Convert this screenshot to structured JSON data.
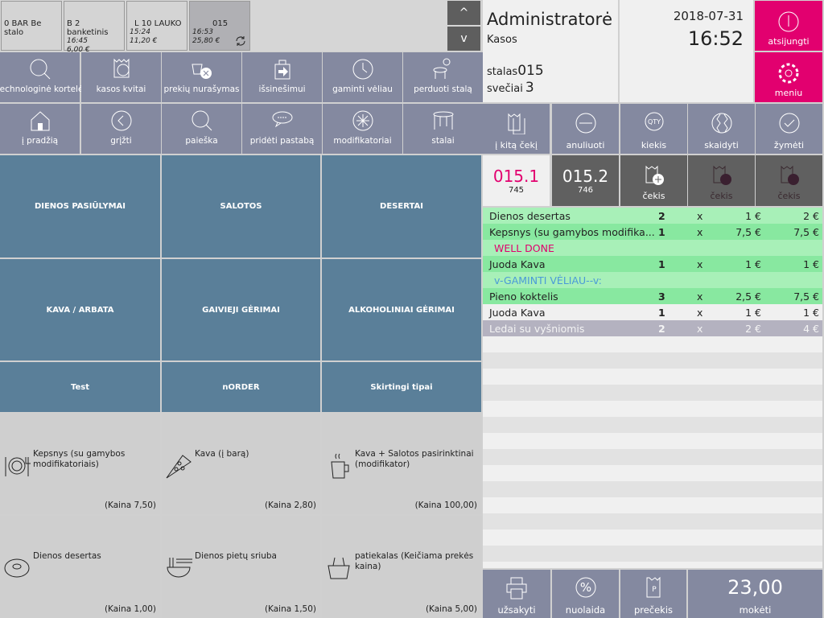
{
  "tables": [
    {
      "label": "0 BAR Be stalo",
      "time": "",
      "amount": ""
    },
    {
      "label": "B 2 banketinis",
      "time": "16:45",
      "amount": "6,00 €"
    },
    {
      "label": "L 10 LAUKO",
      "time": "15:24",
      "amount": "11,20 €"
    },
    {
      "label": "015",
      "time": "16:53",
      "amount": "25,80 €"
    }
  ],
  "arrows": {
    "up": "^",
    "down": "v"
  },
  "toolbar1": [
    "technologinė kortelė",
    "kasos kvitai",
    "prekių nurašymas",
    "išsinešimui",
    "gaminti vėliau",
    "perduoti stalą"
  ],
  "toolbar2": [
    "į pradžią",
    "grįžti",
    "paieška",
    "pridėti pastabą",
    "modifikatoriai",
    "stalai"
  ],
  "categories": [
    "DIENOS PASIŪLYMAI",
    "SALOTOS",
    "DESERTAI",
    "KAVA / ARBATA",
    "GAIVIEJI GĖRIMAI",
    "ALKOHOLINIAI GĖRIMAI",
    "Test",
    "nORDER",
    "Skirtingi tipai"
  ],
  "products": [
    {
      "name": "Kepsnys (su gamybos modifikatoriais)",
      "price": "(Kaina 7,50)",
      "icon": "plate-cutlery-icon"
    },
    {
      "name": "Kava (į barą)",
      "price": "(Kaina 2,80)",
      "icon": "pizza-icon"
    },
    {
      "name": "Kava + Salotos pasirinktinai (modifikator)",
      "price": "(Kaina 100,00)",
      "icon": "cup-icon"
    },
    {
      "name": "Dienos desertas",
      "price": "(Kaina 1,00)",
      "icon": "donut-icon"
    },
    {
      "name": "Dienos pietų sriuba",
      "price": "(Kaina 1,50)",
      "icon": "noodle-bowl-icon"
    },
    {
      "name": "patiekalas (Keičiama prekės kaina)",
      "price": "(Kaina 5,00)",
      "icon": "basket-icon"
    }
  ],
  "header": {
    "user": "Administratorė",
    "role": "Kasos",
    "table_label": "stalas",
    "table": "015",
    "guests_label": "svečiai",
    "guests": "3",
    "date": "2018-07-31",
    "time": "16:52",
    "logout": "atsijungti",
    "menu": "meniu"
  },
  "actions": [
    "į kitą čekį",
    "anuliuoti",
    "kiekis",
    "skaidyti",
    "žymėti"
  ],
  "checks": [
    {
      "id": "015.1",
      "num": "745"
    },
    {
      "id": "015.2",
      "num": "746"
    }
  ],
  "check_add": [
    "čekis",
    "čekis",
    "čekis"
  ],
  "lines": [
    {
      "name": "Dienos desertas",
      "qty": "2",
      "x": "x",
      "price": "1 €",
      "total": "2 €",
      "bg": "#a8f0b8"
    },
    {
      "name": "Kepsnys (su gamybos modifika...",
      "qty": "1",
      "x": "x",
      "price": "7,5 €",
      "total": "7,5 €",
      "bg": "#88e8a0"
    },
    {
      "note": "WELL DONE",
      "color": "#e0006e",
      "bg": "#a8f0b8"
    },
    {
      "name": "Juoda Kava",
      "qty": "1",
      "x": "x",
      "price": "1 €",
      "total": "1 €",
      "bg": "#88e8a0"
    },
    {
      "note": "v-GAMINTI VĖLIAU--v:",
      "color": "#4a9ad8",
      "bg": "#a8f0b8"
    },
    {
      "name": "Pieno koktelis",
      "qty": "3",
      "x": "x",
      "price": "2,5 €",
      "total": "7,5 €",
      "bg": "#88e8a0"
    },
    {
      "name": "Juoda Kava",
      "qty": "1",
      "x": "x",
      "price": "1 €",
      "total": "1 €",
      "bg": "#f0f0f0"
    },
    {
      "name": "Ledai su vyšniomis",
      "qty": "2",
      "x": "x",
      "price": "2 €",
      "total": "4 €",
      "bg": "#b4b2c0",
      "fg": "#f4f4f4"
    }
  ],
  "bottom": {
    "order": "užsakyti",
    "discount": "nuolaida",
    "precheck": "prečekis",
    "total": "23,00",
    "pay": "mokėti"
  }
}
